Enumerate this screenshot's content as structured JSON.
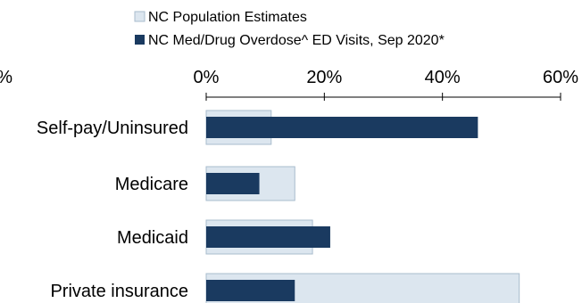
{
  "chart_data": {
    "type": "bar",
    "orientation": "horizontal",
    "categories": [
      "Self-pay/Uninsured",
      "Medicare",
      "Medicaid",
      "Private insurance"
    ],
    "series": [
      {
        "name": "NC Population Estimates",
        "values": [
          11,
          15,
          18,
          53
        ],
        "color": "#dce6ef"
      },
      {
        "name": "NC Med/Drug Overdose^ ED Visits, Sep 2020*",
        "values": [
          46,
          9,
          21,
          15
        ],
        "color": "#1a3a60"
      }
    ],
    "xlim": [
      0,
      60
    ],
    "x_ticks": [
      "%",
      "0%",
      "20%",
      "40%",
      "60%"
    ],
    "axis_position": "top",
    "grid": false,
    "legend_position": "top"
  }
}
